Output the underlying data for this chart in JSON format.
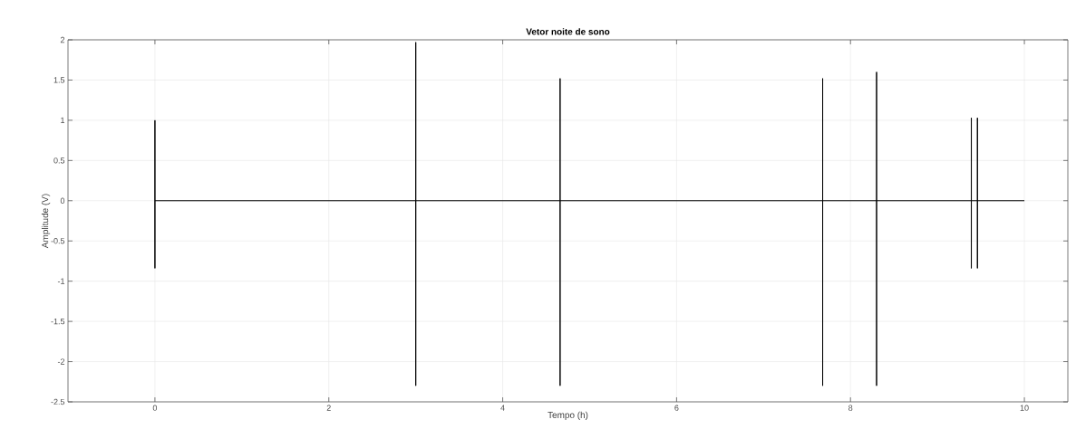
{
  "chart_data": {
    "type": "line",
    "title": "Vetor noite de sono",
    "xlabel": "Tempo (h)",
    "ylabel": "Amplitude (V)",
    "x": [
      0,
      0,
      0,
      0,
      3,
      3,
      3,
      3,
      4.66,
      4.66,
      4.66,
      4.66,
      7.68,
      7.68,
      7.68,
      7.68,
      8.3,
      8.3,
      8.3,
      8.3,
      9.39,
      9.39,
      9.39,
      9.39,
      9.46,
      9.46,
      9.46,
      9.46,
      10
    ],
    "values": [
      0,
      1,
      -0.84,
      0,
      0,
      1.97,
      -2.3,
      0,
      0,
      1.52,
      -2.3,
      0,
      0,
      1.52,
      -2.3,
      0,
      0,
      1.6,
      -2.3,
      0,
      0,
      1.03,
      -0.84,
      0,
      0,
      1.03,
      -0.84,
      0,
      0
    ],
    "color": "#000000",
    "xlim": [
      -1,
      10.5
    ],
    "ylim": [
      -2.5,
      2
    ],
    "xticks": [
      0,
      2,
      4,
      6,
      8,
      10
    ],
    "yticks": [
      -2.5,
      -2,
      -1.5,
      -1,
      -0.5,
      0,
      0.5,
      1,
      1.5,
      2
    ],
    "grid": true,
    "marker": "none",
    "line_style": "solid"
  }
}
